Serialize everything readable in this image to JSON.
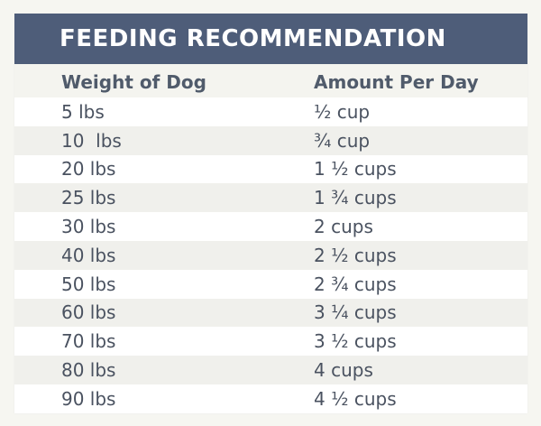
{
  "title": "FEEDING RECOMMENDATION",
  "columns": {
    "weight": "Weight of Dog",
    "amount": "Amount Per Day"
  },
  "rows": [
    {
      "weight": "5 lbs",
      "amount": "½ cup"
    },
    {
      "weight": "10  lbs",
      "amount": "¾ cup"
    },
    {
      "weight": "20 lbs",
      "amount": "1 ½ cups"
    },
    {
      "weight": "25 lbs",
      "amount": "1 ¾ cups"
    },
    {
      "weight": "30 lbs",
      "amount": "2 cups"
    },
    {
      "weight": "40 lbs",
      "amount": "2 ½ cups"
    },
    {
      "weight": "50 lbs",
      "amount": "2 ¾ cups"
    },
    {
      "weight": "60 lbs",
      "amount": "3 ¼ cups"
    },
    {
      "weight": "70 lbs",
      "amount": "3 ½ cups"
    },
    {
      "weight": "80 lbs",
      "amount": "4 cups"
    },
    {
      "weight": "90 lbs",
      "amount": "4 ½ cups"
    }
  ]
}
